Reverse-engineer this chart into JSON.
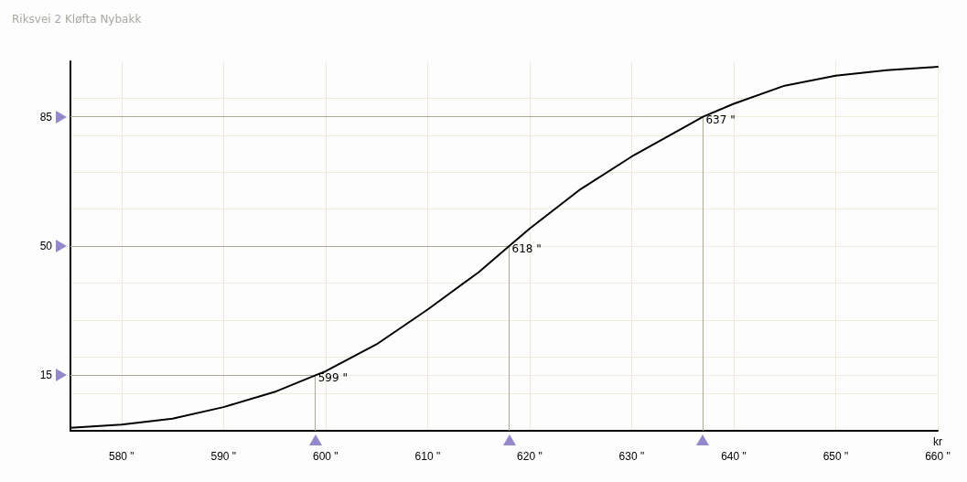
{
  "chart_data": {
    "type": "line",
    "title": "Riksvei 2 Kløfta Nybakk",
    "xlabel": "kr",
    "x": [
      575,
      580,
      585,
      590,
      595,
      599,
      600,
      605,
      610,
      615,
      618,
      620,
      625,
      630,
      635,
      637,
      640,
      645,
      650,
      655,
      660
    ],
    "series": [
      {
        "color": "#000000",
        "values": [
          0.8,
          1.7,
          3.3,
          6.4,
          10.5,
          15,
          16.1,
          23.4,
          32.8,
          42.9,
          50,
          54.7,
          65.4,
          74.2,
          81.9,
          85,
          88.5,
          93.4,
          96.1,
          97.6,
          98.5
        ]
      }
    ],
    "xlim": [
      575,
      660
    ],
    "xticks": [
      {
        "value": 580,
        "label": "580 \""
      },
      {
        "value": 590,
        "label": "590 \""
      },
      {
        "value": 600,
        "label": "600 \""
      },
      {
        "value": 610,
        "label": "610 \""
      },
      {
        "value": 620,
        "label": "620 \""
      },
      {
        "value": 630,
        "label": "630 \""
      },
      {
        "value": 640,
        "label": "640 \""
      },
      {
        "value": 650,
        "label": "650 \""
      },
      {
        "value": 660,
        "label": "660 \""
      }
    ],
    "ylim": [
      0,
      100
    ],
    "yticks": [
      {
        "value": 10,
        "label": null
      },
      15,
      {
        "value": 20,
        "label": null
      },
      {
        "value": 30,
        "label": null
      },
      {
        "value": 40,
        "label": null
      },
      50,
      {
        "value": 60,
        "label": null
      },
      {
        "value": 70,
        "label": null
      },
      {
        "value": 80,
        "label": null
      },
      85,
      {
        "value": 90,
        "label": null
      }
    ],
    "ref_lines": [
      {
        "axis": "y",
        "value": 15,
        "color": "#aaa796"
      },
      {
        "axis": "y",
        "value": 50,
        "color": "#aaa796"
      },
      {
        "axis": "y",
        "value": 85,
        "color": "#aaa796"
      },
      {
        "axis": "x",
        "value": 599,
        "label": "599 \"",
        "color": "#aaa796"
      },
      {
        "axis": "x",
        "value": 618,
        "label": "618 \"",
        "color": "#aaa796"
      },
      {
        "axis": "x",
        "value": 637,
        "label": "637 \"",
        "color": "#aaa796"
      }
    ],
    "grid": true,
    "marker": "none",
    "line_style": "solid"
  }
}
